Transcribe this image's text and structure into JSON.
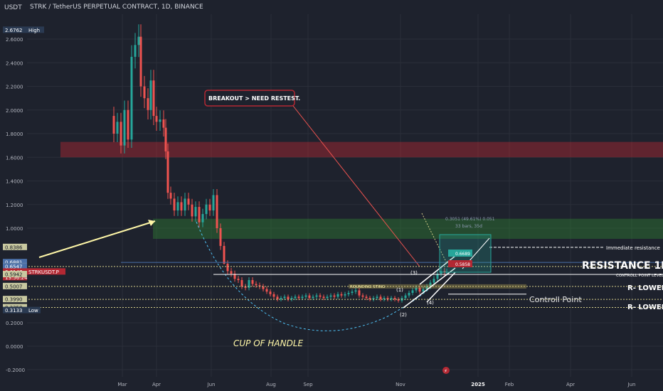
{
  "header": {
    "quote_currency": "USDT",
    "symbol_title": "STRK / TetherUS PERPETUAL CONTRACT, 1D, BINANCE"
  },
  "chart_data": {
    "type": "candlestick",
    "y_ticks": [
      "2.6000",
      "2.4000",
      "2.2000",
      "2.0000",
      "1.8000",
      "1.6000",
      "1.4000",
      "1.2000",
      "1.0000",
      "0.2000",
      "0.0000",
      "-0.2000"
    ],
    "x_ticks": [
      "Mar",
      "Apr",
      "Jun",
      "Aug",
      "Sep",
      "Nov",
      "2025",
      "Feb",
      "Apr",
      "Jun"
    ],
    "price_tags": [
      {
        "label": "2.6762",
        "value": 2.6762,
        "color": "#2a3a52",
        "side": "High"
      },
      {
        "label": "0.8386",
        "value": 0.8386,
        "color": "#c9c9a0"
      },
      {
        "label": "0.6881",
        "value": 0.6881,
        "color": "#4a6fa8"
      },
      {
        "label": "0.6560",
        "value": 0.656,
        "color": "#c9c9a0"
      },
      {
        "label": "0.6547",
        "value": 0.6547,
        "color": "#4a6fa8"
      },
      {
        "label": "0.6147",
        "value": 0.6147,
        "color": "#b22833",
        "side": "STRKUSDT.P",
        "sub": "13:56:24"
      },
      {
        "label": "0.5942",
        "value": 0.5942,
        "color": "#c9c9a0"
      },
      {
        "label": "0.5007",
        "value": 0.5007,
        "color": "#c9c9a0"
      },
      {
        "label": "0.3990",
        "value": 0.399,
        "color": "#c9c9a0"
      },
      {
        "label": "0.3358",
        "value": 0.3358,
        "color": "#c9c9a0"
      },
      {
        "label": "0.3133",
        "value": 0.3133,
        "color": "#2a3a52",
        "side": "Low"
      }
    ],
    "zones": [
      {
        "name": "red-supply-zone",
        "from": 1.6,
        "to": 1.73,
        "color": "#b22833"
      },
      {
        "name": "green-zone",
        "from": 0.91,
        "to": 1.08,
        "color": "#2e7d32"
      }
    ],
    "annotations": {
      "breakout": "BREAKOUT > NEED RESTEST.",
      "resistance_1m": "RESISTANCE 1M",
      "immediate_resistance": "Immediate resistance",
      "controll_point_level": "CONTROLL POINT LEVEL II",
      "r_lower_1": "R- LOWER",
      "r_lower_2": "R- LOWER",
      "controll_point": "Controll Point",
      "cup_of_handle": "CUP OF HANDLE",
      "rounding_line": "ROUNDING STING",
      "wave_labels": [
        "(1)",
        "(2)",
        "(3)",
        "(4)"
      ],
      "measure_top": "0.3051 (49.61%) 0.051",
      "measure_bottom": "33 bars, 35d",
      "target_price": "0.6689",
      "entry_price": "0.5858"
    },
    "series_note": "STRKUSDT daily candles"
  }
}
